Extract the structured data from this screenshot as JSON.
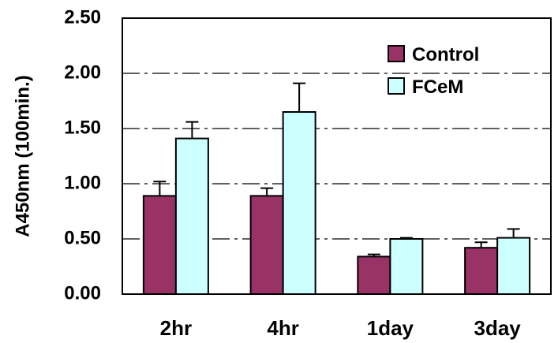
{
  "chart_data": {
    "type": "bar",
    "ylabel": "A450nm (100min.)",
    "xlabel": "",
    "ylim": [
      0,
      2.5
    ],
    "yticks": [
      "0.00",
      "0.50",
      "1.00",
      "1.50",
      "2.00",
      "2.50"
    ],
    "ytick_values": [
      0,
      0.5,
      1.0,
      1.5,
      2.0,
      2.5
    ],
    "grid": "dash-dot horizontal",
    "legend_position": "top-right",
    "categories": [
      "2hr",
      "4hr",
      "1day",
      "3day"
    ],
    "series": [
      {
        "name": "Control",
        "color": "#993366",
        "values": [
          0.89,
          0.89,
          0.34,
          0.42
        ],
        "errors": [
          0.13,
          0.07,
          0.02,
          0.05
        ]
      },
      {
        "name": "FCeM",
        "color": "#CCFFFF",
        "values": [
          1.41,
          1.65,
          0.5,
          0.51
        ],
        "errors": [
          0.15,
          0.26,
          0.01,
          0.08
        ]
      }
    ]
  }
}
